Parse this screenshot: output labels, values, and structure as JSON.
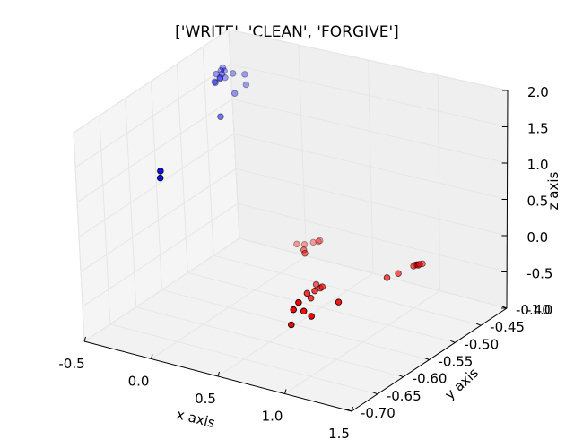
{
  "chart_data": {
    "type": "scatter3d",
    "title": "['WRITE', 'CLEAN', 'FORGIVE']",
    "xlabel": "x axis",
    "ylabel": "y axis",
    "zlabel": "z axis",
    "xlim": [
      -0.5,
      1.5
    ],
    "ylim": [
      -0.7,
      -0.4
    ],
    "zlim": [
      -1.0,
      2.0
    ],
    "xticks": [
      "-0.5",
      "0.0",
      "0.5",
      "1.0",
      "1.5"
    ],
    "yticks": [
      "-0.70",
      "-0.65",
      "-0.60",
      "-0.55",
      "-0.50",
      "-0.45",
      "-0.40"
    ],
    "zticks": [
      "-1.0",
      "-0.5",
      "0.0",
      "0.5",
      "1.0",
      "1.5",
      "2.0"
    ],
    "grid": true,
    "series": [
      {
        "color": "#0000ff",
        "points": [
          [
            -0.48,
            -0.42,
            1.56
          ],
          [
            -0.469,
            -0.42,
            1.52
          ],
          [
            -0.455,
            -0.43,
            1.58
          ],
          [
            -0.445,
            -0.431,
            1.54
          ],
          [
            -0.44,
            -0.443,
            1.6
          ],
          [
            -0.438,
            -0.447,
            1.51
          ],
          [
            -0.438,
            -0.446,
            1.49
          ],
          [
            -0.41,
            -0.444,
            1.55
          ],
          [
            -0.404,
            -0.436,
            1.53
          ],
          [
            -0.402,
            -0.446,
            1.58
          ],
          [
            -0.384,
            -0.426,
            1.55
          ],
          [
            -0.372,
            -0.407,
            1.45
          ],
          [
            -0.327,
            -0.417,
            1.37
          ],
          [
            -0.3,
            -0.446,
            1.4
          ],
          [
            -0.24,
            -0.49,
            1.31
          ],
          [
            -0.14,
            -0.633,
            1.28
          ],
          [
            -0.132,
            -0.636,
            1.2
          ]
        ]
      },
      {
        "color": "#ff0000",
        "points": [
          [
            0.087,
            -0.439,
            -0.6
          ],
          [
            0.125,
            -0.434,
            -0.61
          ],
          [
            0.132,
            -0.419,
            -0.65
          ],
          [
            0.183,
            -0.422,
            -0.6
          ],
          [
            0.23,
            -0.431,
            -0.52
          ],
          [
            0.312,
            -0.483,
            -0.36
          ],
          [
            0.375,
            -0.497,
            -0.31
          ],
          [
            0.56,
            -0.524,
            -0.53
          ],
          [
            0.64,
            -0.537,
            -0.48
          ],
          [
            0.675,
            -0.542,
            -0.42
          ],
          [
            0.705,
            -0.572,
            -0.42
          ],
          [
            0.705,
            -0.579,
            -0.32
          ],
          [
            0.72,
            -0.568,
            -0.33
          ],
          [
            0.896,
            -0.635,
            -0.21
          ],
          [
            0.92,
            -0.651,
            0.0
          ],
          [
            0.974,
            -0.675,
            0.04
          ],
          [
            1.003,
            -0.687,
            -0.1
          ],
          [
            1.06,
            -0.663,
            -0.07
          ],
          [
            1.085,
            -0.617,
            -0.08
          ],
          [
            1.16,
            -0.543,
            -0.06
          ],
          [
            1.186,
            -0.528,
            -0.06
          ],
          [
            1.215,
            -0.506,
            -0.05
          ],
          [
            1.222,
            -0.504,
            -0.04
          ],
          [
            1.233,
            -0.504,
            -0.03
          ],
          [
            1.245,
            -0.505,
            -0.03
          ],
          [
            1.256,
            -0.505,
            -0.01
          ],
          [
            1.261,
            -0.501,
            -0.02
          ]
        ]
      }
    ]
  }
}
